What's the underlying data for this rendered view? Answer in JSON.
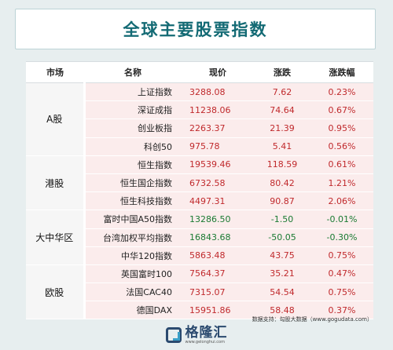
{
  "title": "全球主要股票指数",
  "headers": {
    "market": "市场",
    "name": "名称",
    "price": "现价",
    "change": "涨跌",
    "pct": "涨跌幅"
  },
  "groups": [
    {
      "market": "A股",
      "rows": [
        {
          "name": "上证指数",
          "price": "3288.08",
          "change": "7.62",
          "pct": "0.23%",
          "dir": "up"
        },
        {
          "name": "深证成指",
          "price": "11238.06",
          "change": "74.64",
          "pct": "0.67%",
          "dir": "up"
        },
        {
          "name": "创业板指",
          "price": "2263.37",
          "change": "21.39",
          "pct": "0.95%",
          "dir": "up"
        },
        {
          "name": "科创50",
          "price": "975.78",
          "change": "5.41",
          "pct": "0.56%",
          "dir": "up"
        }
      ]
    },
    {
      "market": "港股",
      "rows": [
        {
          "name": "恒生指数",
          "price": "19539.46",
          "change": "118.59",
          "pct": "0.61%",
          "dir": "up"
        },
        {
          "name": "恒生国企指数",
          "price": "6732.58",
          "change": "80.42",
          "pct": "1.21%",
          "dir": "up"
        },
        {
          "name": "恒生科技指数",
          "price": "4497.31",
          "change": "90.87",
          "pct": "2.06%",
          "dir": "up"
        }
      ]
    },
    {
      "market": "大中华区",
      "rows": [
        {
          "name": "富时中国A50指数",
          "price": "13286.50",
          "change": "-1.50",
          "pct": "-0.01%",
          "dir": "down"
        },
        {
          "name": "台湾加权平均指数",
          "price": "16843.68",
          "change": "-50.05",
          "pct": "-0.30%",
          "dir": "down"
        },
        {
          "name": "中华120指数",
          "price": "5863.48",
          "change": "43.75",
          "pct": "0.75%",
          "dir": "up"
        }
      ]
    },
    {
      "market": "欧股",
      "rows": [
        {
          "name": "英国富时100",
          "price": "7564.37",
          "change": "35.21",
          "pct": "0.47%",
          "dir": "up"
        },
        {
          "name": "法国CAC40",
          "price": "7315.07",
          "change": "54.54",
          "pct": "0.75%",
          "dir": "up"
        },
        {
          "name": "德国DAX",
          "price": "15951.86",
          "change": "58.48",
          "pct": "0.37%",
          "dir": "up"
        }
      ]
    }
  ],
  "footer": {
    "source": "数据支持：勾股大数据（www.gogudata.com）",
    "logo_text": "格隆汇",
    "logo_url": "www.gelonghui.com"
  },
  "colors": {
    "up": "#c0292c",
    "down": "#1a7a32",
    "title": "#136a74"
  }
}
